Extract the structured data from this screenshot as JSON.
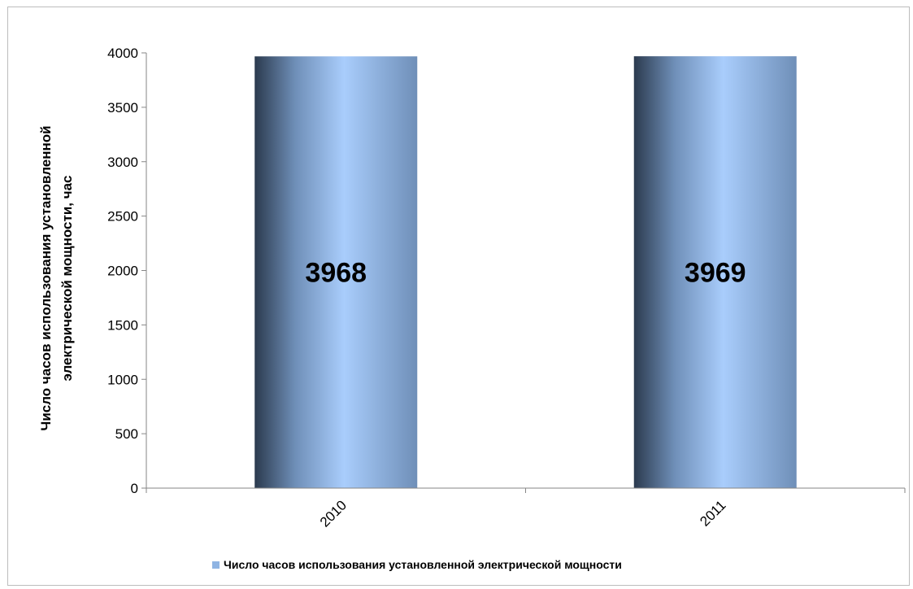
{
  "chart_data": {
    "type": "bar",
    "categories": [
      "2010",
      "2011"
    ],
    "series": [
      {
        "name": "Число часов использования установленной электрической мощности",
        "values": [
          3968,
          3969
        ],
        "color": "#8fb4e3"
      }
    ],
    "ylabel": "Число часов использования установленной электрической мощности, час",
    "ylabel_lines": [
      "Число часов использования установленной",
      "электрической мощности, час"
    ],
    "xlabel": "",
    "ylim": [
      0,
      4000
    ],
    "yticks": [
      0,
      500,
      1000,
      1500,
      2000,
      2500,
      3000,
      3500,
      4000
    ],
    "data_labels": [
      "3968",
      "3969"
    ],
    "grid": false,
    "legend_position": "bottom",
    "colors": {
      "bar_dark": "#2b3a4e",
      "bar_mid": "#6f8fb8",
      "bar_light": "#a9cdfc",
      "axis": "#868686"
    }
  }
}
